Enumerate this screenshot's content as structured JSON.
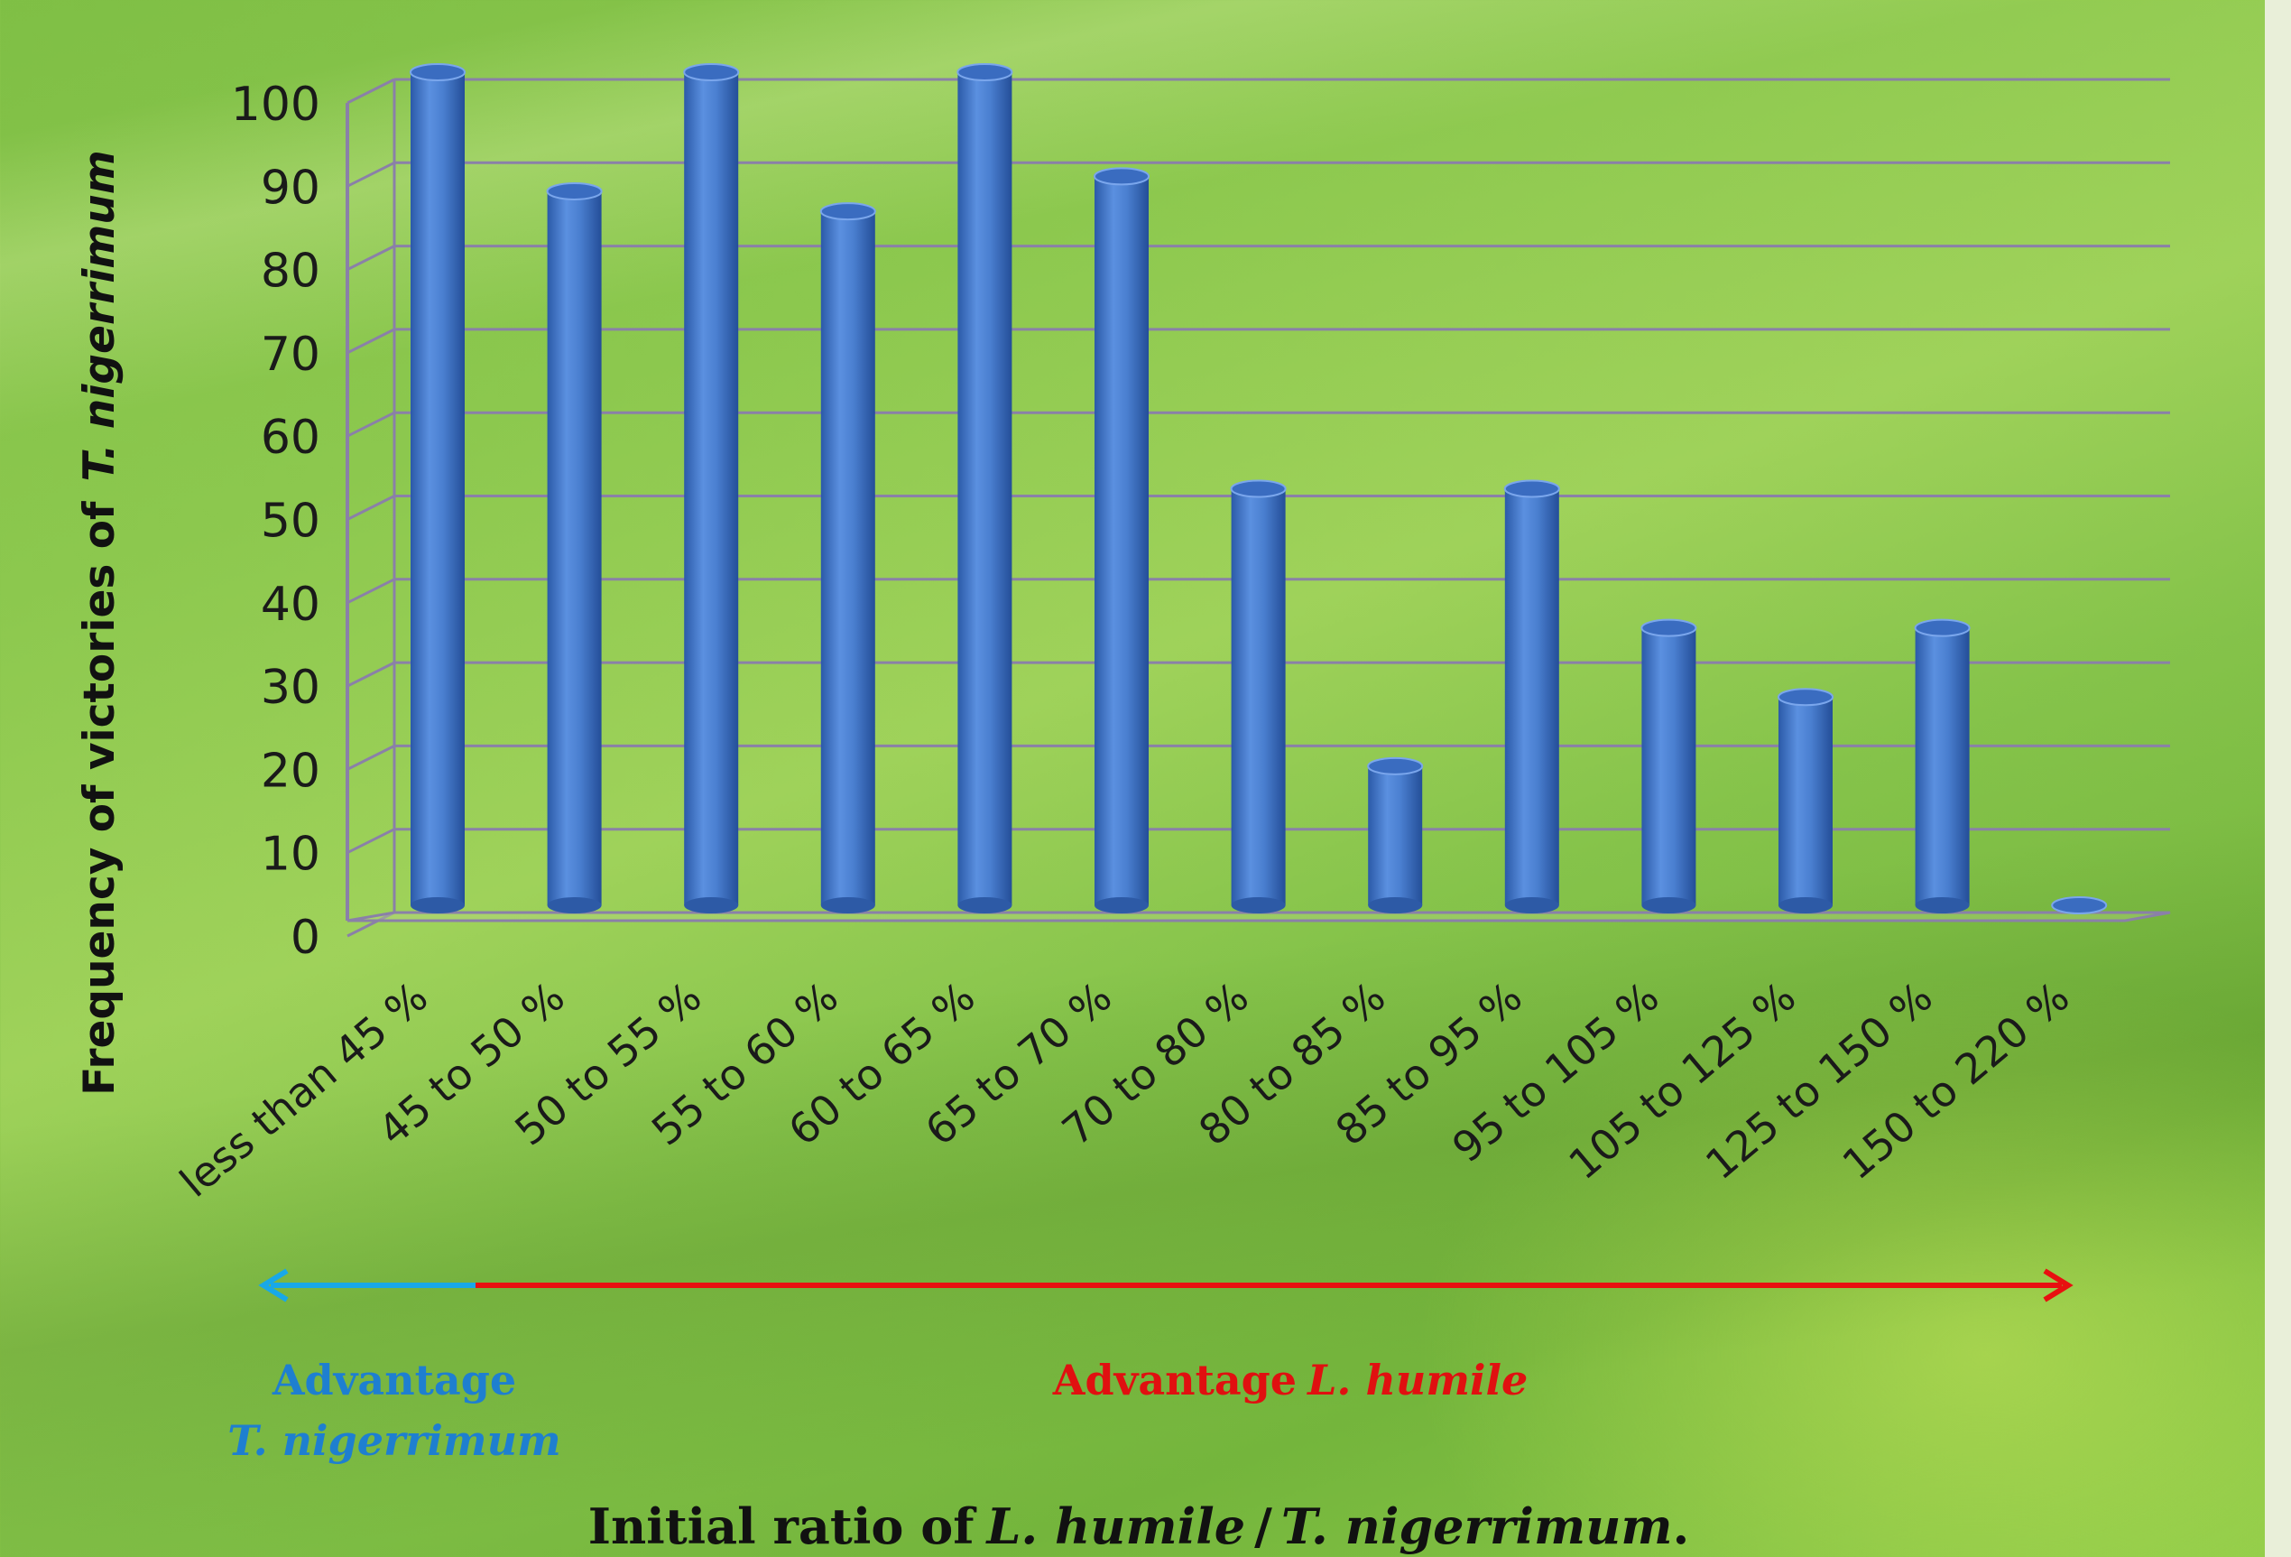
{
  "chart_data": {
    "type": "bar",
    "title": "",
    "ylabel_regular": "Frequency of victories of",
    "ylabel_italic": "T. nigerrimum",
    "xlabel_prefix": "Initial ratio of",
    "xlabel_species1": "L. humile",
    "xlabel_sep": "/",
    "xlabel_species2": "T. nigerrimum",
    "xlabel_suffix": ".",
    "categories": [
      "less than 45 %",
      "45 to 50 %",
      "50 to 55 %",
      "55 to 60 %",
      "60 to 65 %",
      "65 to 70 %",
      "70 to 80 %",
      "80 to 85 %",
      "85 to 95 %",
      "95 to 105 %",
      "105 to 125 %",
      "125 to 150 %",
      "150 to 220 %"
    ],
    "values": [
      100,
      85.7,
      100,
      83.3,
      100,
      87.5,
      50,
      16.7,
      50,
      33.3,
      25,
      33.3,
      0
    ],
    "ylim": [
      0,
      100
    ],
    "yticks": [
      0,
      10,
      20,
      30,
      40,
      50,
      60,
      70,
      80,
      90,
      100
    ],
    "grid": true,
    "legend": "none",
    "bar_color": "#4a7fd0"
  },
  "annotations": {
    "left_label_line1": "Advantage",
    "left_label_line2": "T. nigerrimum",
    "left_color": "#1e7fd0",
    "right_label_regular": "Advantage",
    "right_label_italic": "L. humile",
    "right_color": "#e01010",
    "arrow_left_color": "#18a8e8",
    "arrow_right_color": "#e81010"
  }
}
